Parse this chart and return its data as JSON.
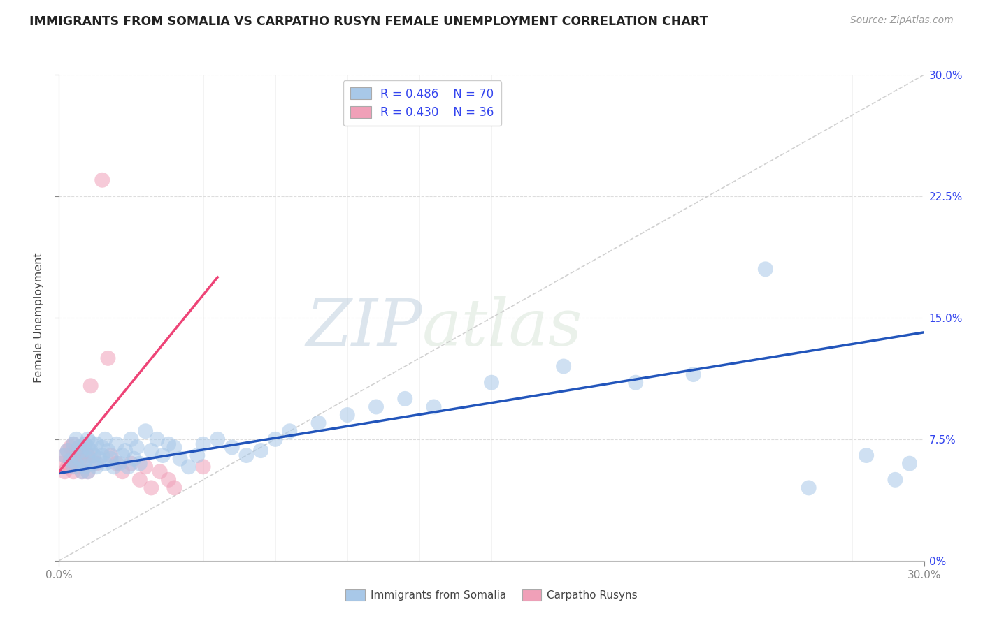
{
  "title": "IMMIGRANTS FROM SOMALIA VS CARPATHO RUSYN FEMALE UNEMPLOYMENT CORRELATION CHART",
  "source_text": "Source: ZipAtlas.com",
  "ylabel": "Female Unemployment",
  "xlim": [
    0.0,
    0.3
  ],
  "ylim": [
    0.0,
    0.3
  ],
  "ytick_positions": [
    0.0,
    0.075,
    0.15,
    0.225,
    0.3
  ],
  "ytick_labels": [
    "0%",
    "7.5%",
    "15.0%",
    "22.5%",
    "30.0%"
  ],
  "legend_r1": "R = 0.486",
  "legend_n1": "N = 70",
  "legend_r2": "R = 0.430",
  "legend_n2": "N = 36",
  "color_blue": "#A8C8E8",
  "color_pink": "#F0A0B8",
  "color_blue_line": "#2255BB",
  "color_pink_line": "#EE4477",
  "color_legend_text": "#3344EE",
  "watermark_zip": "ZIP",
  "watermark_atlas": "atlas",
  "background_color": "#FFFFFF",
  "grid_color": "#DDDDDD",
  "series1_label": "Immigrants from Somalia",
  "series2_label": "Carpatho Rusyns",
  "blue_x": [
    0.002,
    0.003,
    0.004,
    0.005,
    0.005,
    0.006,
    0.006,
    0.007,
    0.007,
    0.008,
    0.008,
    0.009,
    0.009,
    0.01,
    0.01,
    0.01,
    0.01,
    0.011,
    0.011,
    0.012,
    0.012,
    0.013,
    0.013,
    0.014,
    0.015,
    0.015,
    0.016,
    0.016,
    0.017,
    0.018,
    0.019,
    0.02,
    0.021,
    0.022,
    0.023,
    0.024,
    0.025,
    0.026,
    0.027,
    0.028,
    0.03,
    0.032,
    0.034,
    0.036,
    0.038,
    0.04,
    0.042,
    0.045,
    0.048,
    0.05,
    0.055,
    0.06,
    0.065,
    0.07,
    0.075,
    0.08,
    0.09,
    0.1,
    0.11,
    0.12,
    0.13,
    0.15,
    0.175,
    0.2,
    0.22,
    0.245,
    0.26,
    0.28,
    0.29,
    0.295
  ],
  "blue_y": [
    0.065,
    0.068,
    0.062,
    0.058,
    0.072,
    0.06,
    0.075,
    0.063,
    0.07,
    0.055,
    0.068,
    0.072,
    0.058,
    0.063,
    0.07,
    0.075,
    0.055,
    0.068,
    0.073,
    0.06,
    0.065,
    0.072,
    0.058,
    0.063,
    0.065,
    0.07,
    0.06,
    0.075,
    0.068,
    0.063,
    0.058,
    0.072,
    0.06,
    0.065,
    0.068,
    0.058,
    0.075,
    0.063,
    0.07,
    0.06,
    0.08,
    0.068,
    0.075,
    0.065,
    0.072,
    0.07,
    0.063,
    0.058,
    0.065,
    0.072,
    0.075,
    0.07,
    0.065,
    0.068,
    0.075,
    0.08,
    0.085,
    0.09,
    0.095,
    0.1,
    0.095,
    0.11,
    0.12,
    0.11,
    0.115,
    0.18,
    0.045,
    0.065,
    0.05,
    0.06
  ],
  "pink_x": [
    0.001,
    0.002,
    0.002,
    0.003,
    0.003,
    0.004,
    0.004,
    0.005,
    0.005,
    0.005,
    0.006,
    0.006,
    0.007,
    0.007,
    0.008,
    0.008,
    0.009,
    0.009,
    0.01,
    0.01,
    0.011,
    0.012,
    0.013,
    0.015,
    0.017,
    0.018,
    0.02,
    0.022,
    0.025,
    0.028,
    0.03,
    0.032,
    0.035,
    0.038,
    0.04,
    0.05
  ],
  "pink_y": [
    0.06,
    0.065,
    0.055,
    0.068,
    0.058,
    0.062,
    0.07,
    0.055,
    0.065,
    0.072,
    0.058,
    0.068,
    0.062,
    0.07,
    0.055,
    0.065,
    0.06,
    0.072,
    0.055,
    0.065,
    0.108,
    0.065,
    0.06,
    0.235,
    0.125,
    0.065,
    0.06,
    0.055,
    0.06,
    0.05,
    0.058,
    0.045,
    0.055,
    0.05,
    0.045,
    0.058
  ],
  "blue_trend_x": [
    0.0,
    0.3
  ],
  "blue_trend_y": [
    0.054,
    0.141
  ],
  "pink_trend_x": [
    0.0,
    0.055
  ],
  "pink_trend_y": [
    0.055,
    0.175
  ]
}
